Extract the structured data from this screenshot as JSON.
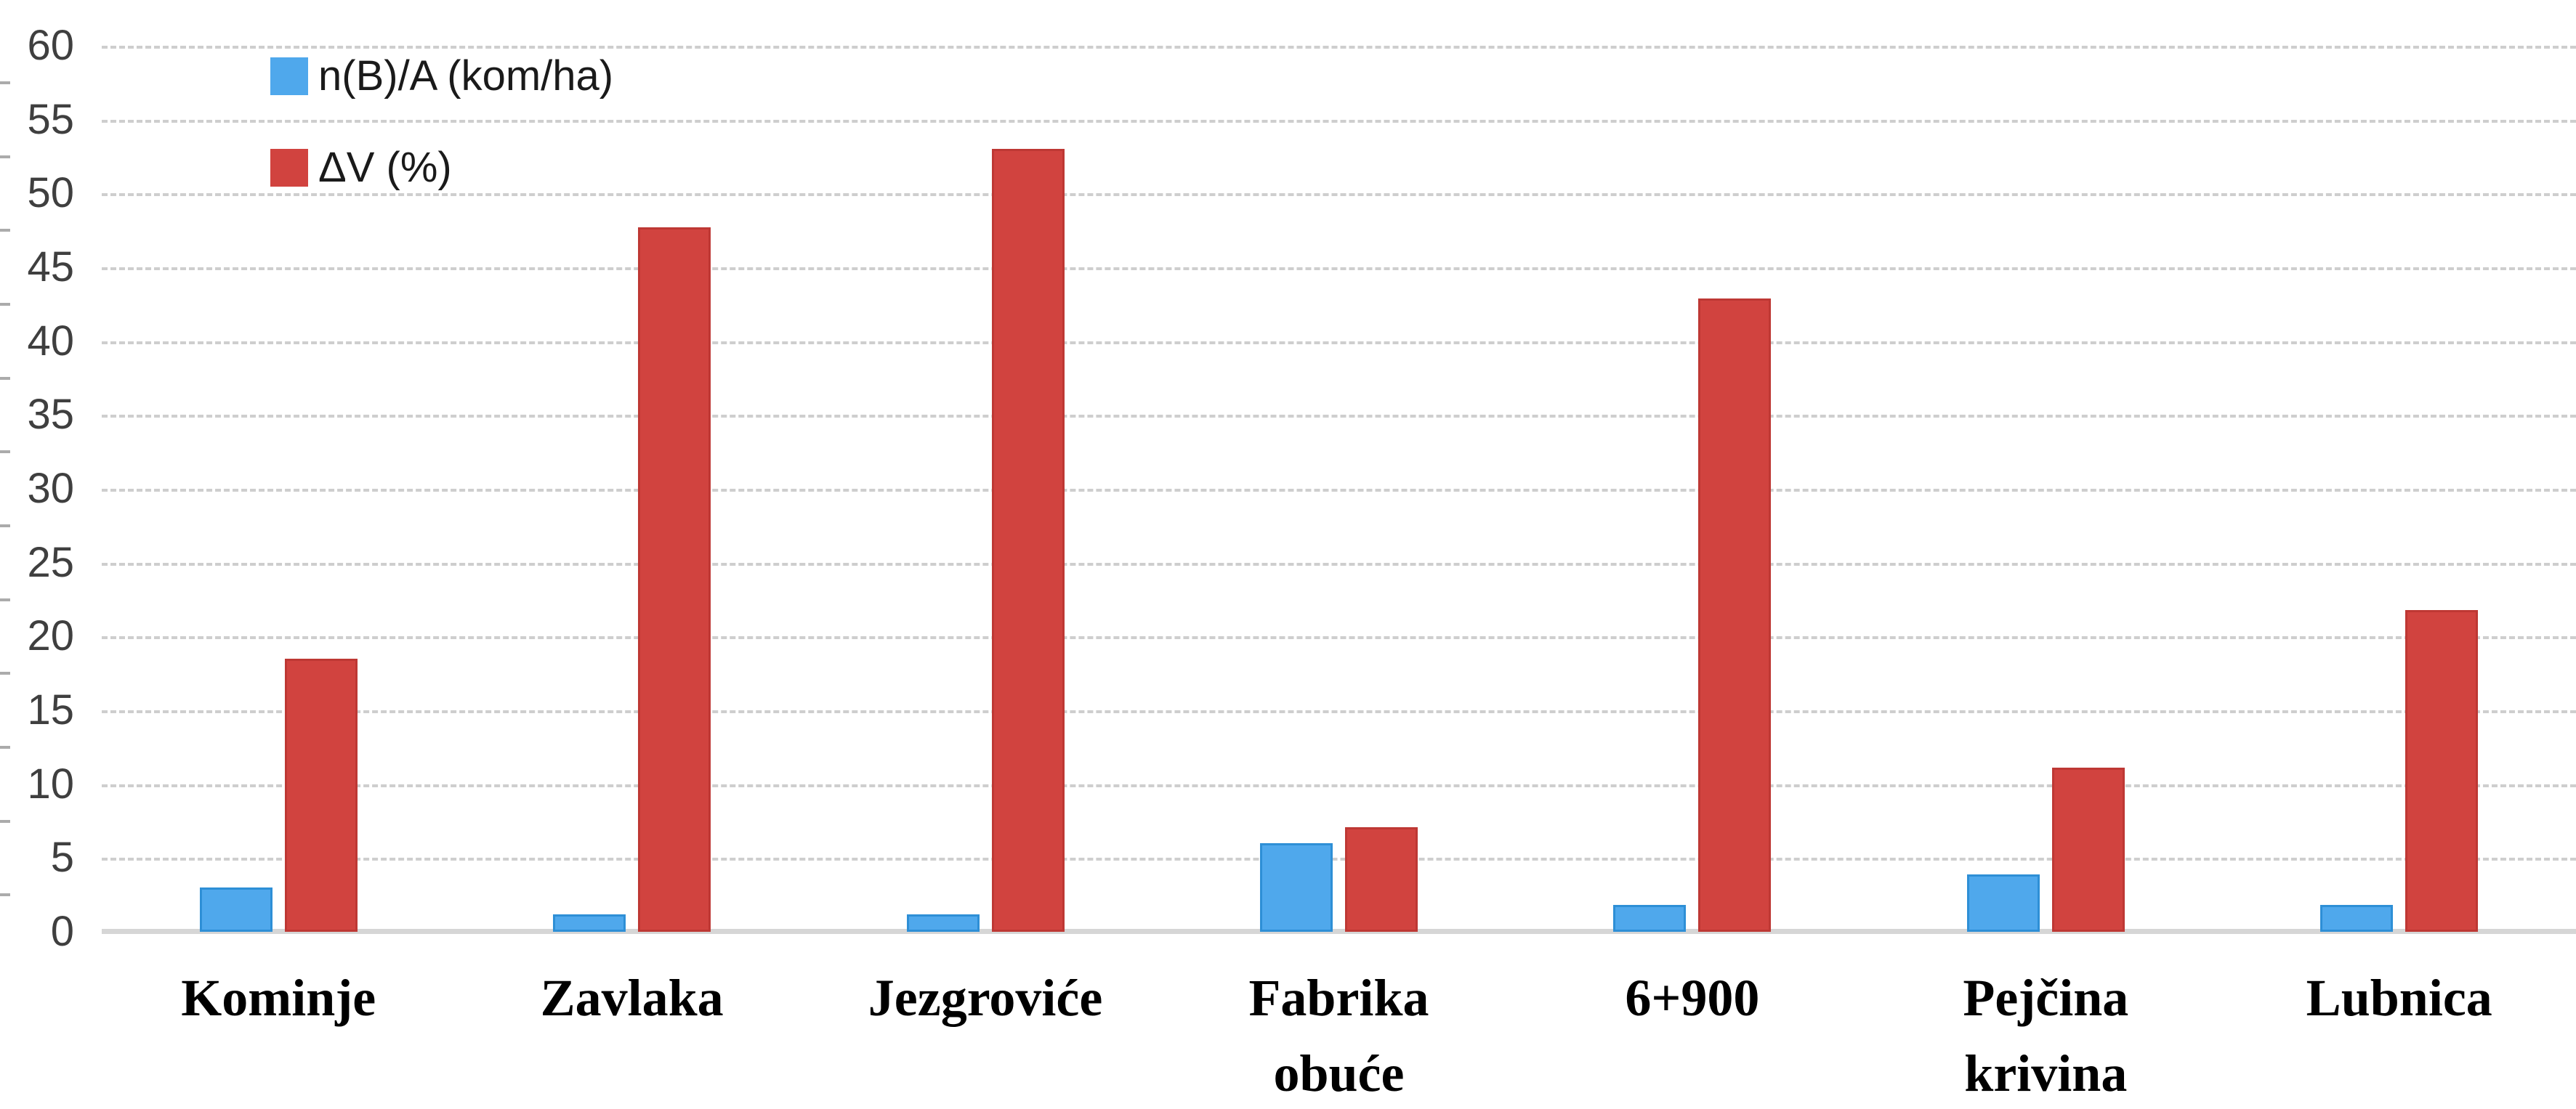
{
  "chart_data": {
    "type": "bar",
    "subtype": "grouped-vertical-columns",
    "categories": [
      "Kominje",
      "Zavlaka",
      "Jezgroviće",
      "Fabrika obuće",
      "6+900",
      "Pejčina krivina",
      "Lubnica"
    ],
    "series": [
      {
        "name": "n(B)/A (kom/ha)",
        "color": "#4FA8EC",
        "border_color": "#2E8FD6",
        "values": [
          3.0,
          1.2,
          1.2,
          6.0,
          1.8,
          3.9,
          1.8
        ]
      },
      {
        "name": "ΔV (%)",
        "color": "#D1433F",
        "border_color": "#BE3834",
        "values": [
          18.5,
          47.7,
          53.0,
          7.1,
          42.9,
          11.1,
          21.8
        ]
      }
    ],
    "title": "",
    "xlabel": "",
    "ylabel": "",
    "ylim": [
      0,
      60
    ],
    "ytick_step": 5,
    "ytick_labels": [
      "0",
      "5",
      "10",
      "15",
      "20",
      "25",
      "30",
      "35",
      "40",
      "45",
      "50",
      "55",
      "60"
    ],
    "grid": "horizontal-dashed",
    "gridline_color": "#CECECE",
    "axis_line_color": "#D6D6D6",
    "tick_label_color": "#3F3F3F",
    "category_label_color": "#000000",
    "legend_position": "top-left-inside",
    "background_color": "#FFFFFF"
  }
}
